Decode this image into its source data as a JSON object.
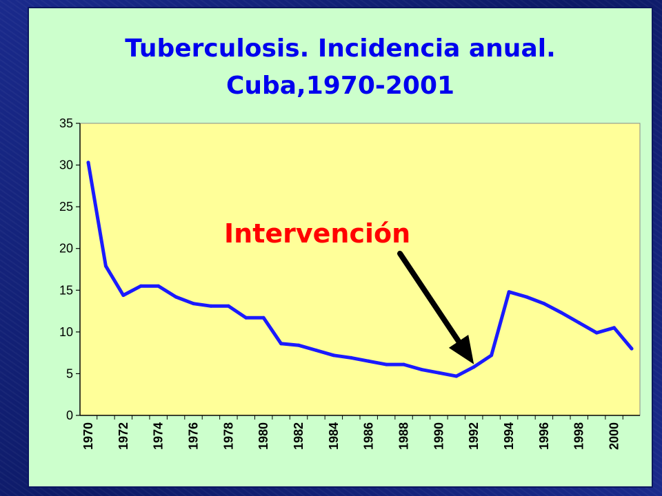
{
  "chart_data": {
    "type": "line",
    "title": [
      "Tuberculosis. Incidencia anual.",
      "Cuba,1970-2001"
    ],
    "xlabel": "",
    "ylabel": "",
    "x": [
      1970,
      1971,
      1972,
      1973,
      1974,
      1975,
      1976,
      1977,
      1978,
      1979,
      1980,
      1981,
      1982,
      1983,
      1984,
      1985,
      1986,
      1987,
      1988,
      1989,
      1990,
      1991,
      1992,
      1993,
      1994,
      1995,
      1996,
      1997,
      1998,
      1999,
      2000,
      2001
    ],
    "series": [
      {
        "values": [
          30.3,
          17.9,
          14.4,
          15.5,
          15.5,
          14.2,
          13.4,
          13.1,
          13.1,
          11.7,
          11.7,
          8.6,
          8.4,
          7.8,
          7.2,
          6.9,
          6.5,
          6.1,
          6.1,
          5.5,
          5.1,
          4.7,
          5.8,
          7.2,
          14.8,
          14.2,
          13.4,
          12.3,
          11.1,
          9.9,
          10.5,
          8.0
        ],
        "color": "#1a1aff"
      }
    ],
    "ylim": [
      0,
      35
    ],
    "yticks": [
      0,
      5,
      10,
      15,
      20,
      25,
      30,
      35
    ],
    "xtick_labels": [
      "1970",
      "1972",
      "1974",
      "1976",
      "1978",
      "1980",
      "1982",
      "1984",
      "1986",
      "1988",
      "1990",
      "1992",
      "1994",
      "1996",
      "1998",
      "2000"
    ],
    "grid": false,
    "plot_background": "#ffff99",
    "annotation": {
      "text": "Intervención",
      "points_to_x": 1992,
      "text_color": "#ff0000"
    }
  },
  "colors": {
    "panel": "#ccffcc",
    "title": "#0000ee",
    "slide_background": "#12207a"
  }
}
